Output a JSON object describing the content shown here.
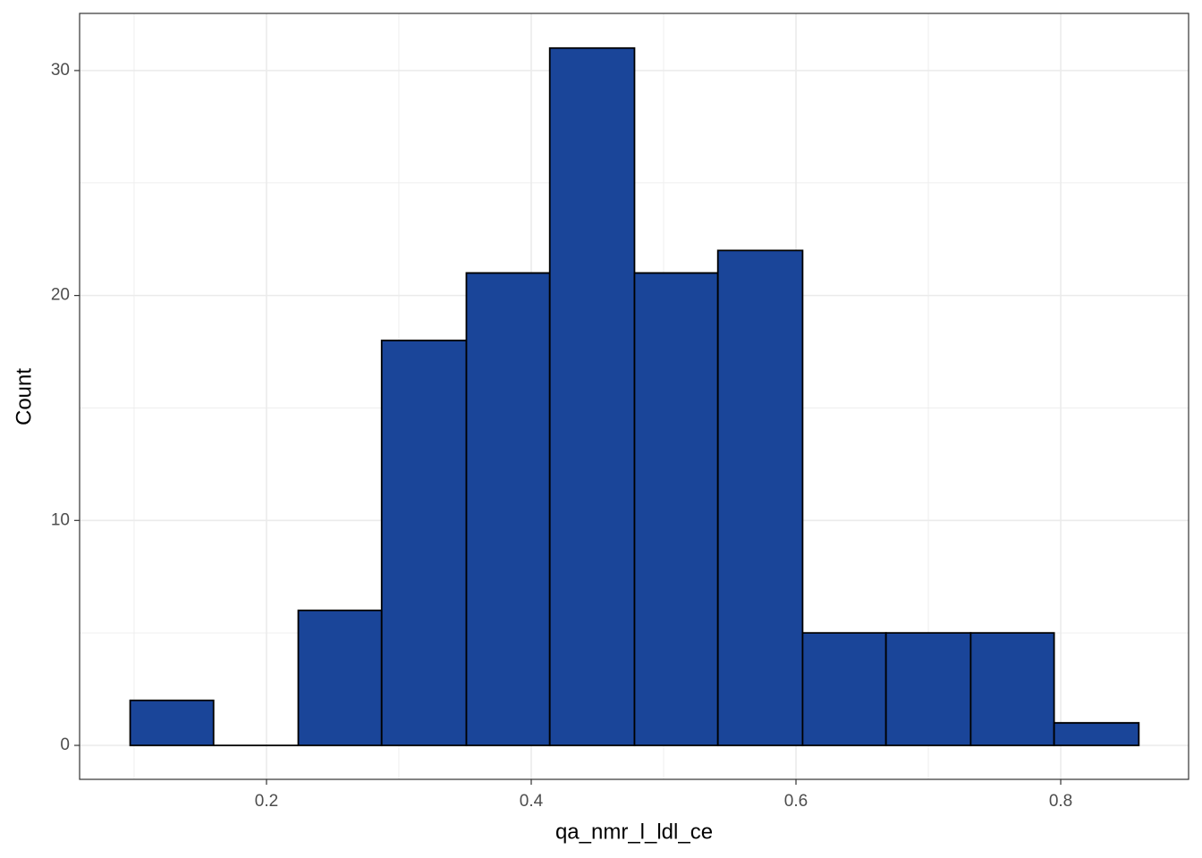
{
  "chart_data": {
    "type": "histogram",
    "x_label": "qa_nmr_l_ldl_ce",
    "y_label": "Count",
    "bins": [
      0.097,
      0.16,
      0.224,
      0.287,
      0.351,
      0.414,
      0.478,
      0.541,
      0.605,
      0.668,
      0.732,
      0.795,
      0.859
    ],
    "counts": [
      2,
      0,
      6,
      18,
      21,
      31,
      21,
      22,
      5,
      5,
      5,
      1
    ],
    "color": "#1a4599",
    "edge_color": "#000000",
    "xlim": [
      0.0588,
      0.8966
    ],
    "xticks": [
      0.2,
      0.4,
      0.6,
      0.8
    ],
    "ylim": [
      -1.51,
      32.54
    ],
    "yticks": [
      0,
      10,
      20,
      30
    ],
    "x_minor_grid": [
      0.1,
      0.3,
      0.5,
      0.7
    ],
    "y_minor_grid": [
      5,
      15,
      25
    ],
    "grid": true
  }
}
